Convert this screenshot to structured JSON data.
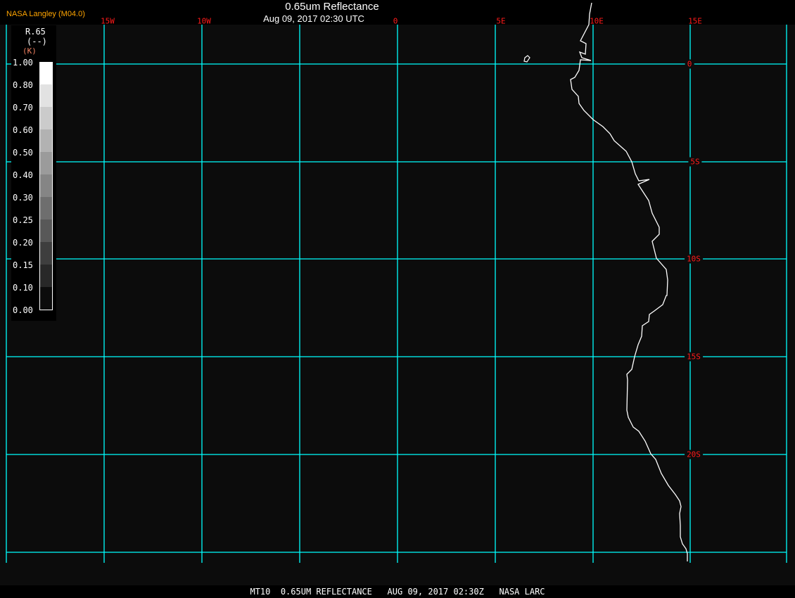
{
  "header": {
    "title": "0.65um Reflectance",
    "subtitle": "Aug 09, 2017 02:30 UTC",
    "credit": "NASA Langley (M04.0)"
  },
  "map": {
    "background": "#0c0c0c",
    "grid_color": "#00ffff",
    "coast_color": "#ffffff",
    "label_color": "#ff1a1a",
    "longitude_labels": [
      "15W",
      "10W",
      "0",
      "5E",
      "10E",
      "15E"
    ],
    "latitude_labels": [
      "0",
      "5S",
      "10S",
      "15S",
      "20S"
    ]
  },
  "legend": {
    "variable": "R.65",
    "units": "(--)",
    "unit_code": "(K)",
    "ticks": [
      "1.00",
      "0.80",
      "0.70",
      "0.60",
      "0.50",
      "0.40",
      "0.30",
      "0.25",
      "0.20",
      "0.15",
      "0.10",
      "0.00"
    ],
    "colors": [
      "#ffffff",
      "#e2e2e2",
      "#cbcbcb",
      "#b2b2b2",
      "#9b9b9b",
      "#858585",
      "#6e6e6e",
      "#585858",
      "#3e3e3e",
      "#282828",
      "#0c0c0c"
    ]
  },
  "footer": {
    "caption": "MT10  0.65UM REFLECTANCE   AUG 09, 2017 02:30Z   NASA LARC"
  }
}
